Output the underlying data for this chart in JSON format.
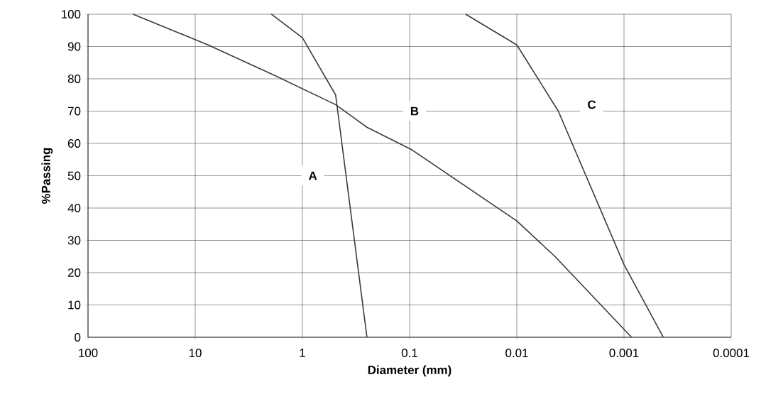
{
  "chart_data": {
    "type": "line",
    "xlabel": "Diameter (mm)",
    "ylabel": "%Passing",
    "log": "x",
    "xlim": [
      100,
      0.0001
    ],
    "ylim": [
      0,
      100
    ],
    "xticks": [
      100,
      10,
      1,
      0.1,
      0.01,
      0.001,
      0.0001
    ],
    "yticks": [
      0,
      10,
      20,
      30,
      40,
      50,
      60,
      70,
      80,
      90,
      100
    ],
    "grid": true,
    "marker": "none",
    "line_style": "solid",
    "series": [
      {
        "color": "#3a3a3a",
        "x": [
          1.95,
          1.0,
          0.49,
          0.25
        ],
        "values": [
          100,
          92.7,
          75,
          0
        ]
      },
      {
        "color": "#3a3a3a",
        "x": [
          38,
          7.6,
          1.8,
          0.49,
          0.25,
          0.095,
          0.01,
          0.0044,
          0.00085
        ],
        "values": [
          100,
          90.5,
          81,
          72,
          65,
          58,
          36,
          25,
          0
        ]
      },
      {
        "color": "#3a3a3a",
        "x": [
          0.03,
          0.01,
          0.0041,
          0.001,
          0.00043
        ],
        "values": [
          100,
          90.5,
          70,
          22.5,
          0
        ]
      }
    ],
    "annotations": [
      {
        "text": "A",
        "x": 0.8,
        "y": 50
      },
      {
        "text": "B",
        "x": 0.09,
        "y": 70
      },
      {
        "text": "C",
        "x": 0.002,
        "y": 72
      }
    ]
  }
}
